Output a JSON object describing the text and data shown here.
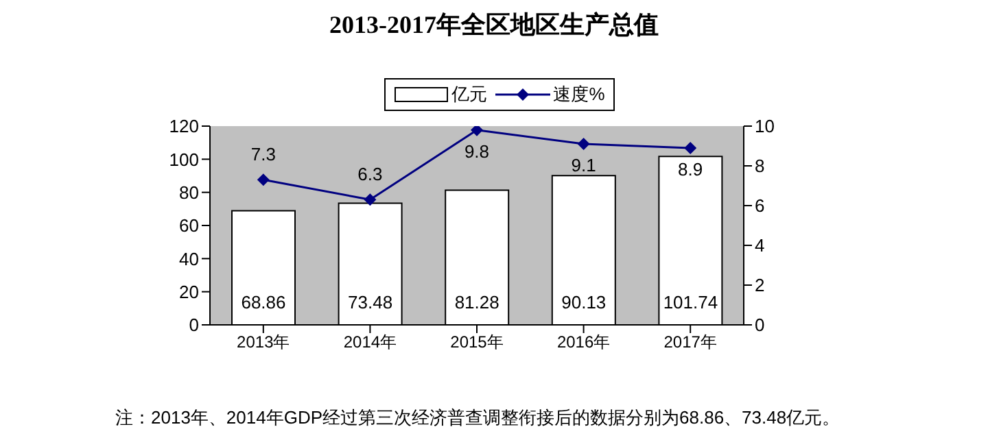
{
  "chart_data": {
    "type": "bar",
    "title": "2013-2017年全区地区生产总值",
    "categories": [
      "2013年",
      "2014年",
      "2015年",
      "2016年",
      "2017年"
    ],
    "series": [
      {
        "name": "亿元",
        "color": "#ffffff",
        "values": [
          68.86,
          73.48,
          81.28,
          90.13,
          101.74
        ]
      },
      {
        "name": "速度%",
        "type": "line",
        "axis": "y2",
        "color": "#000080",
        "values": [
          7.3,
          6.3,
          9.8,
          9.1,
          8.9
        ]
      }
    ],
    "ylim": [
      0,
      120
    ],
    "yticks": [
      0,
      20,
      40,
      60,
      80,
      100,
      120
    ],
    "y2lim": [
      0,
      10
    ],
    "y2ticks": [
      0,
      2,
      4,
      6,
      8,
      10
    ],
    "marker": "diamond",
    "legend": "top",
    "grid": false,
    "data_labels": true,
    "annotations": [
      "注：2013年、2014年GDP经过第三次经济普查调整衔接后的数据分别为68.86、73.48亿元。"
    ]
  }
}
